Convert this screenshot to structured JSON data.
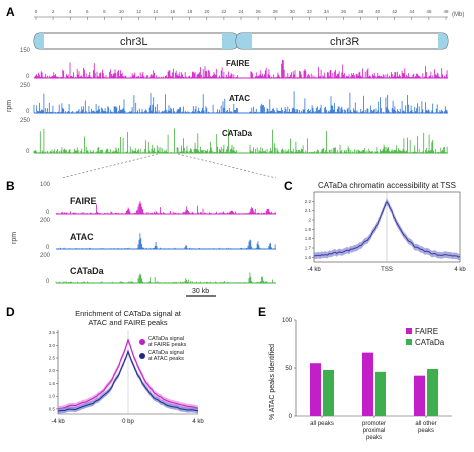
{
  "panels": {
    "a": {
      "letter": "A",
      "axis_unit": "(Mb)",
      "ticks": [
        "0",
        "2",
        "4",
        "6",
        "8",
        "10",
        "12",
        "14",
        "16",
        "18",
        "20",
        "22",
        "24",
        "26",
        "28",
        "30",
        "32",
        "34",
        "36",
        "38",
        "40",
        "42",
        "44",
        "46",
        "48"
      ],
      "chr_left": "chr3L",
      "chr_right": "chr3R",
      "rpm_label": "rpm",
      "tracks": [
        {
          "label": "FAIRE",
          "ymax": "150",
          "ymin": "0",
          "color": "#d21fc8"
        },
        {
          "label": "ATAC",
          "ymax": "250",
          "ymin": "0",
          "color": "#2f75d6"
        },
        {
          "label": "CATaDa",
          "ymax": "250",
          "ymin": "0",
          "color": "#43b33e"
        }
      ]
    },
    "b": {
      "letter": "B",
      "rpm_label": "rpm",
      "scale_label": "30 kb",
      "tracks": [
        {
          "label": "FAIRE",
          "ymax": "100",
          "ymin": "0",
          "color": "#d21fc8"
        },
        {
          "label": "ATAC",
          "ymax": "200",
          "ymin": "0",
          "color": "#2f75d6"
        },
        {
          "label": "CATaDa",
          "ymax": "200",
          "ymin": "0",
          "color": "#43b33e"
        }
      ]
    },
    "c": {
      "letter": "C",
      "title": "CATaDa chromatin accessibility at TSS",
      "x_labels": [
        "-4 kb",
        "TSS",
        "4 kb"
      ],
      "y_labels": [
        "1.6",
        "1.7",
        "1.8",
        "1.9",
        "2",
        "2.1",
        "2.2"
      ],
      "line_color": "#3b3b9e",
      "band_color": "#8d8fd6"
    },
    "d": {
      "letter": "D",
      "title_line1": "Enrichment of CATaDa signal at",
      "title_line2": "ATAC and FAIRE peaks",
      "x_labels": [
        "-4 kb",
        "0 bp",
        "4 kb"
      ],
      "y_labels": [
        "0.5",
        "1.0",
        "1.5",
        "2.0",
        "2.5",
        "3.0",
        "3.5"
      ],
      "legend": [
        {
          "line1": "CATaDa signal",
          "line2": "at FAIRE peaks",
          "color": "#c21fc0"
        },
        {
          "line1": "CATaDa signal",
          "line2": "at ATAC peaks",
          "color": "#1f2a86"
        }
      ]
    },
    "e": {
      "letter": "E",
      "ylabel": "% ATAC peaks identified",
      "legend": [
        {
          "label": "FAIRE",
          "color": "#c21fc8"
        },
        {
          "label": "CATaDa",
          "color": "#3fae4f"
        }
      ]
    }
  },
  "chart_data": [
    {
      "type": "line",
      "title": "CATaDa chromatin accessibility at TSS",
      "x": [
        -4,
        -3.5,
        -3,
        -2.5,
        -2,
        -1.5,
        -1,
        -0.5,
        -0.25,
        0,
        0.25,
        0.5,
        1,
        1.5,
        2,
        2.5,
        3,
        3.5,
        4
      ],
      "series": [
        {
          "values": [
            1.61,
            1.62,
            1.64,
            1.66,
            1.68,
            1.72,
            1.8,
            1.96,
            2.08,
            2.2,
            2.1,
            1.98,
            1.82,
            1.72,
            1.67,
            1.64,
            1.62,
            1.62,
            1.61
          ]
        }
      ],
      "xlabel": "",
      "ylabel": "",
      "ylim": [
        1.55,
        2.3
      ]
    },
    {
      "type": "line",
      "title": "Enrichment of CATaDa signal at ATAC and FAIRE peaks",
      "x": [
        -4,
        -3,
        -2,
        -1.5,
        -1,
        -0.5,
        -0.25,
        0,
        0.25,
        0.5,
        1,
        1.5,
        2,
        3,
        4
      ],
      "series": [
        {
          "name": "CATaDa signal at FAIRE peaks",
          "values": [
            0.52,
            0.65,
            0.9,
            1.15,
            1.55,
            2.25,
            2.7,
            3.2,
            2.7,
            2.25,
            1.55,
            1.15,
            0.9,
            0.65,
            0.52
          ]
        },
        {
          "name": "CATaDa signal at ATAC peaks",
          "values": [
            0.42,
            0.5,
            0.72,
            0.95,
            1.3,
            1.9,
            2.3,
            2.75,
            2.3,
            1.9,
            1.3,
            0.95,
            0.72,
            0.5,
            0.42
          ]
        }
      ],
      "ylim": [
        0.3,
        3.6
      ]
    },
    {
      "type": "bar",
      "categories": [
        "all peaks",
        "promoter proximal peaks",
        "all other peaks"
      ],
      "series": [
        {
          "name": "FAIRE",
          "values": [
            55,
            66,
            42
          ]
        },
        {
          "name": "CATaDa",
          "values": [
            48,
            46,
            49
          ]
        }
      ],
      "ylabel": "% ATAC peaks identified",
      "yticks": [
        0,
        50,
        100
      ],
      "ylim": [
        0,
        100
      ]
    }
  ]
}
